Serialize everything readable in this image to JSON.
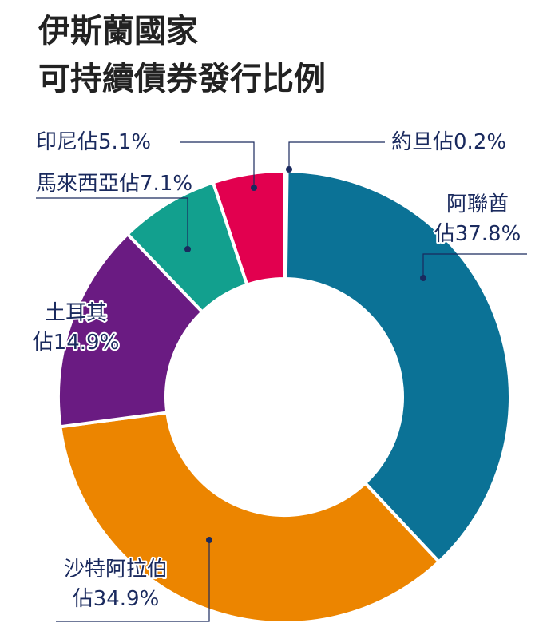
{
  "chart_data": {
    "type": "donut",
    "title": [
      "伊斯蘭國家",
      "可持續債券發行比例"
    ],
    "categories": [
      "約旦",
      "阿聯酋",
      "沙特阿拉伯",
      "土耳其",
      "馬來西亞",
      "印尼"
    ],
    "values": [
      0.2,
      37.8,
      34.9,
      14.9,
      7.1,
      5.1
    ],
    "value_labels": [
      "佔0.2%",
      "佔37.8%",
      "佔34.9%",
      "佔14.9%",
      "佔7.1%",
      "佔5.1%"
    ],
    "colors": [
      "#0d1b4f",
      "#0b7296",
      "#ec8500",
      "#6a1b82",
      "#12a08e",
      "#e2004f"
    ]
  }
}
